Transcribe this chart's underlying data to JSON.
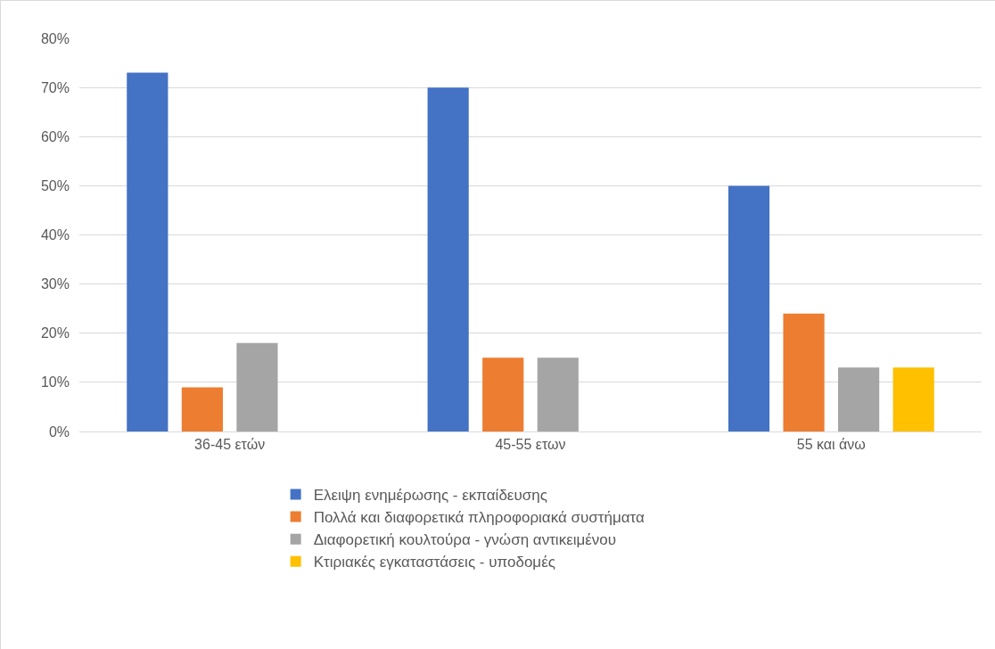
{
  "chart_data": {
    "type": "bar",
    "categories": [
      "36-45 ετών",
      "45-55 ετων",
      "55 και άνω"
    ],
    "series": [
      {
        "name": "Ελειψη ενημέρωσης - εκπαίδευσης",
        "color": "#4472c4",
        "values": [
          73,
          70,
          50
        ]
      },
      {
        "name": "Πολλά και διαφορετικά πληροφοριακά συστήματα",
        "color": "#ed7d31",
        "values": [
          9,
          15,
          24
        ]
      },
      {
        "name": "Διαφορετική κουλτούρα - γνώση αντικειμένου",
        "color": "#a5a5a5",
        "values": [
          18,
          15,
          13
        ]
      },
      {
        "name": "Κτιριακές εγκαταστάσεις - υποδομές",
        "color": "#ffc000",
        "values": [
          0,
          0,
          13
        ]
      }
    ],
    "ylim": [
      0,
      80
    ],
    "yticks": [
      {
        "value": 0,
        "label": "0%"
      },
      {
        "value": 10,
        "label": "10%"
      },
      {
        "value": 20,
        "label": "20%"
      },
      {
        "value": 30,
        "label": "30%"
      },
      {
        "value": 40,
        "label": "40%"
      },
      {
        "value": 50,
        "label": "50%"
      },
      {
        "value": 60,
        "label": "60%"
      },
      {
        "value": 70,
        "label": "70%"
      },
      {
        "value": 80,
        "label": "80%"
      }
    ],
    "grid": "y",
    "legend": "bottom"
  }
}
